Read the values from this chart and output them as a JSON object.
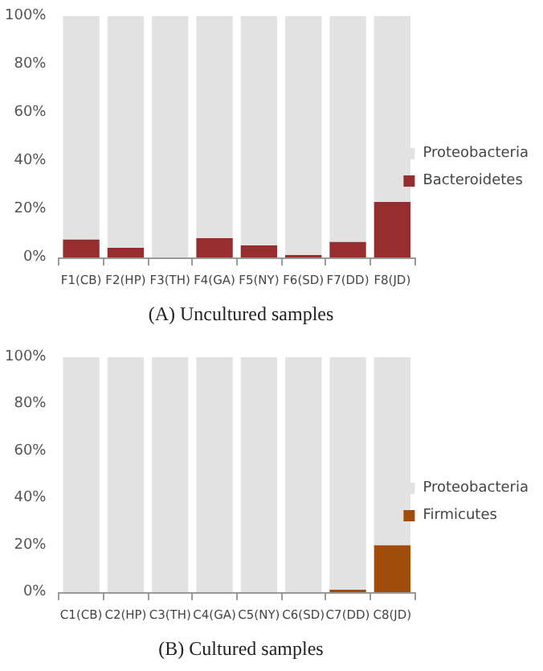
{
  "chart_data": [
    {
      "type": "bar",
      "title": "(A) Uncultured samples",
      "categories": [
        "F1(CB)",
        "F2(HP)",
        "F3(TH)",
        "F4(GA)",
        "F5(NY)",
        "F6(SD)",
        "F7(DD)",
        "F8(JD)"
      ],
      "stacked": true,
      "series": [
        {
          "name": "Bacteroidetes",
          "color": "#962d2e",
          "values": [
            7.5,
            4,
            0,
            8,
            5,
            1,
            6.5,
            23
          ]
        },
        {
          "name": "Proteobacteria",
          "color": "#e2e2e2",
          "values": [
            92.5,
            96,
            100,
            92,
            95,
            99,
            93.5,
            77
          ]
        }
      ],
      "ylim": [
        0,
        100
      ],
      "yticks": [
        {
          "value": 0,
          "label": "0%"
        },
        {
          "value": 20,
          "label": "20%"
        },
        {
          "value": 40,
          "label": "40%"
        },
        {
          "value": 60,
          "label": "60%"
        },
        {
          "value": 80,
          "label": "80%"
        },
        {
          "value": 100,
          "label": "100%"
        }
      ],
      "legend": "right"
    },
    {
      "type": "bar",
      "title": "(B) Cultured samples",
      "categories": [
        "C1(CB)",
        "C2(HP)",
        "C3(TH)",
        "C4(GA)",
        "C5(NY)",
        "C6(SD)",
        "C7(DD)",
        "C8(JD)"
      ],
      "stacked": true,
      "series": [
        {
          "name": "Firmicutes",
          "color": "#a04c0a",
          "values": [
            0,
            0,
            0,
            0,
            0,
            0,
            1,
            20
          ]
        },
        {
          "name": "Proteobacteria",
          "color": "#e2e2e2",
          "values": [
            100,
            100,
            100,
            100,
            100,
            100,
            99,
            80
          ]
        }
      ],
      "ylim": [
        0,
        100
      ],
      "yticks": [
        {
          "value": 0,
          "label": "0%"
        },
        {
          "value": 20,
          "label": "20%"
        },
        {
          "value": 40,
          "label": "40%"
        },
        {
          "value": 60,
          "label": "60%"
        },
        {
          "value": 80,
          "label": "80%"
        },
        {
          "value": 100,
          "label": "100%"
        }
      ],
      "legend": "right"
    }
  ]
}
